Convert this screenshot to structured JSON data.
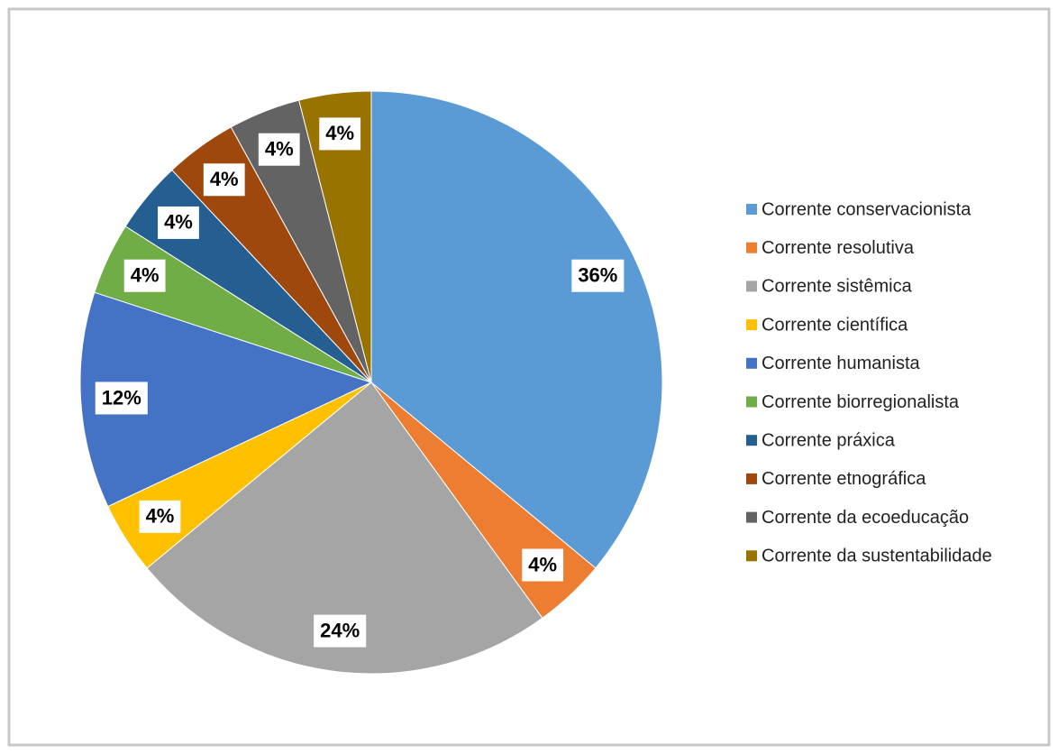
{
  "chart_data": {
    "type": "pie",
    "categories": [
      "Corrente conservacionista",
      "Corrente resolutiva",
      "Corrente sistêmica",
      "Corrente científica",
      "Corrente humanista",
      "Corrente biorregionalista",
      "Corrente práxica",
      "Corrente etnográfica",
      "Corrente da ecoeducação",
      "Corrente da sustentabilidade"
    ],
    "values": [
      36,
      4,
      24,
      4,
      12,
      4,
      4,
      4,
      4,
      4
    ],
    "value_labels": [
      "36%",
      "4%",
      "24%",
      "4%",
      "12%",
      "4%",
      "4%",
      "4%",
      "4%",
      "4%"
    ],
    "colors": [
      "#5b9bd5",
      "#ed7d31",
      "#a5a5a5",
      "#ffc000",
      "#4472c4",
      "#70ad47",
      "#255e91",
      "#9e480e",
      "#636363",
      "#997300"
    ],
    "legend": "right"
  }
}
